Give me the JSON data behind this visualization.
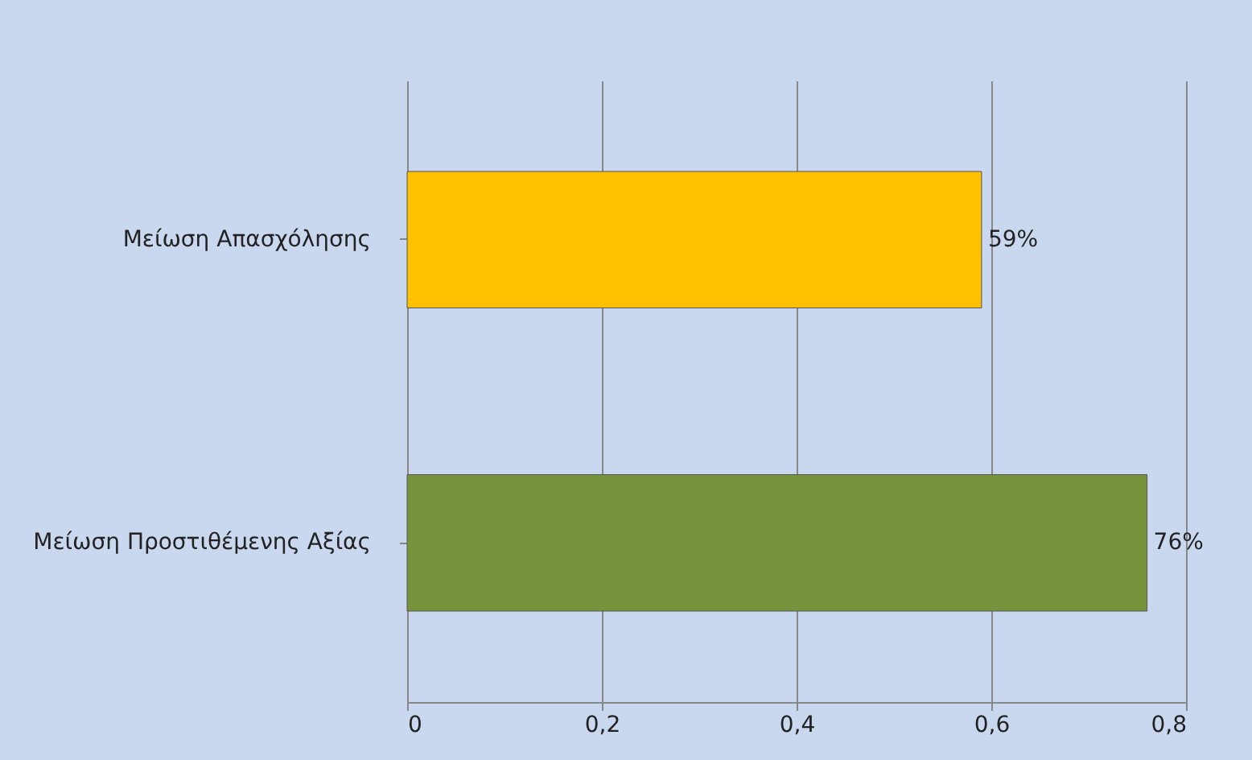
{
  "chart_data": {
    "type": "bar",
    "orientation": "horizontal",
    "categories": [
      "Μείωση Απασχόλησης",
      "Μείωση Προστιθέμενης Αξίας"
    ],
    "values": [
      0.59,
      0.76
    ],
    "colors": [
      "#ffc000",
      "#77933c"
    ],
    "value_labels": [
      "59%",
      "76%"
    ],
    "xlim": [
      0,
      0.8
    ],
    "xticks": [
      0,
      {
        "value": 0.2,
        "label": "0,2"
      },
      {
        "value": 0.4,
        "label": "0,4"
      },
      {
        "value": 0.6,
        "label": "0,6"
      },
      {
        "value": 0.8,
        "label": "0,8"
      }
    ],
    "grid": "x"
  }
}
